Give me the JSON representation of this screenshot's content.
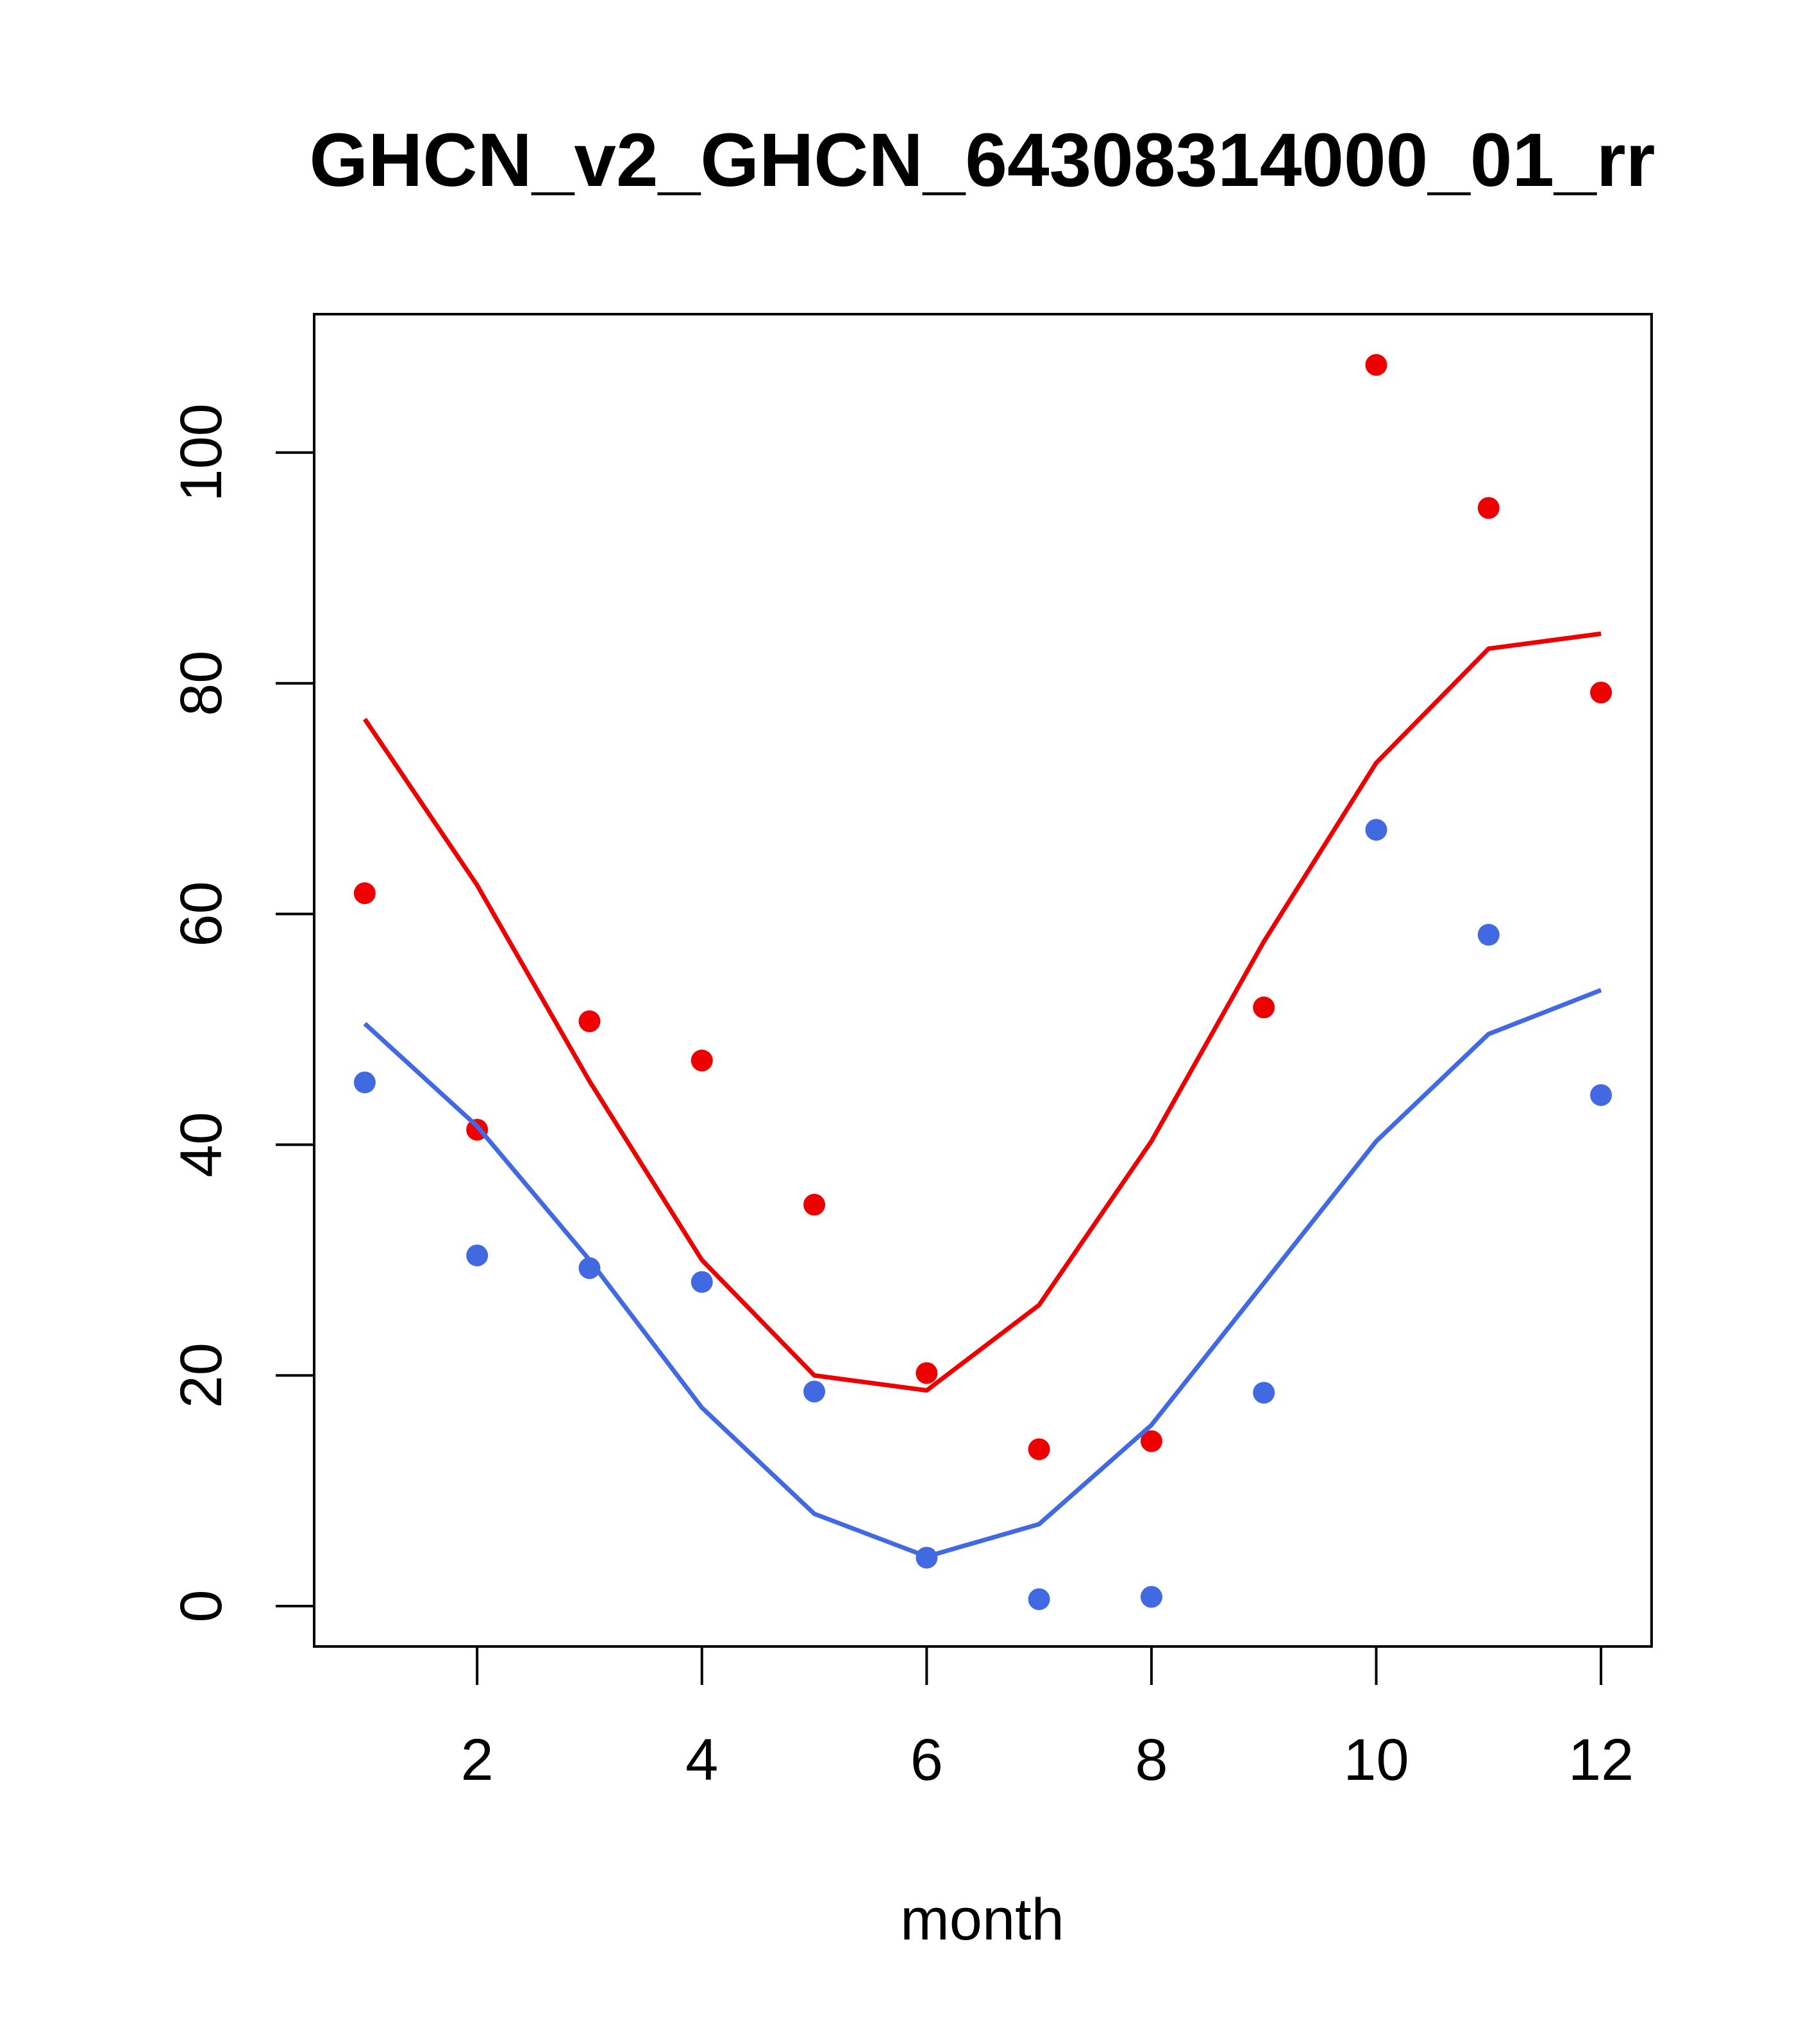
{
  "chart_data": {
    "type": "scatter",
    "title": "GHCN_v2_GHCN_64308314000_01_rr",
    "xlabel": "month",
    "ylabel": "",
    "xlim": [
      0.55,
      12.45
    ],
    "ylim": [
      -3.5,
      112
    ],
    "xticks": [
      2,
      4,
      6,
      8,
      10,
      12
    ],
    "yticks": [
      0,
      20,
      40,
      60,
      80,
      100
    ],
    "grid": false,
    "legend": "none",
    "series": [
      {
        "color": "#ee0000",
        "points_x": [
          1,
          2,
          3,
          4,
          5,
          6,
          7,
          8,
          9,
          10,
          11,
          12
        ],
        "points_y": [
          61.8,
          41.3,
          50.7,
          47.3,
          34.8,
          20.2,
          13.6,
          14.3,
          51.9,
          107.6,
          95.2,
          79.2
        ],
        "line_x": [
          1,
          2,
          3,
          4,
          5,
          6,
          7,
          8,
          9,
          10,
          11,
          12
        ],
        "line_y": [
          76.9,
          62.5,
          45.5,
          30.0,
          20.0,
          18.7,
          26.1,
          40.3,
          57.6,
          73.1,
          83.0,
          84.3
        ]
      },
      {
        "color": "#4169e1",
        "points_x": [
          1,
          2,
          3,
          4,
          5,
          6,
          7,
          8,
          9,
          10,
          11,
          12
        ],
        "points_y": [
          45.4,
          30.4,
          29.3,
          28.1,
          18.6,
          4.2,
          0.6,
          0.8,
          18.5,
          67.3,
          58.2,
          44.3
        ],
        "line_x": [
          1,
          2,
          3,
          4,
          5,
          6,
          7,
          8,
          9,
          10,
          11,
          12
        ],
        "line_y": [
          50.5,
          41.6,
          30.0,
          17.2,
          8.0,
          4.3,
          7.1,
          15.7,
          28.0,
          40.3,
          49.6,
          53.4
        ]
      }
    ]
  }
}
